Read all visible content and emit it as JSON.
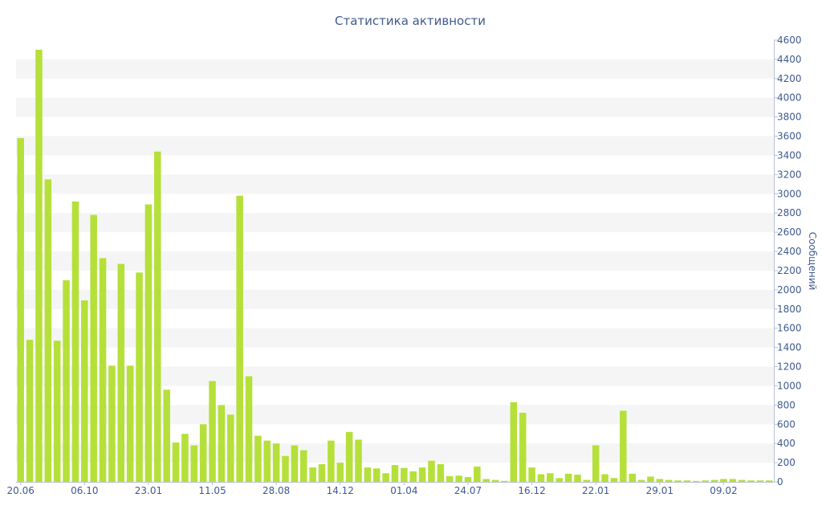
{
  "chart_data": {
    "type": "bar",
    "title": "Статистика активности",
    "ylabel": "Сообщений",
    "xlabel": "",
    "ylim": [
      0,
      4600
    ],
    "y_ticks": [
      0,
      200,
      400,
      600,
      800,
      1000,
      1200,
      1400,
      1600,
      1800,
      2000,
      2200,
      2400,
      2600,
      2800,
      3000,
      3200,
      3400,
      3600,
      3800,
      4000,
      4200,
      4400,
      4600
    ],
    "y_axis_position": "right",
    "grid": "alternating horizontal bands",
    "x_tick_labels": [
      "20.06",
      "06.10",
      "23.01",
      "11.05",
      "28.08",
      "14.12",
      "01.04",
      "24.07",
      "16.12",
      "22.01",
      "29.01",
      "09.02"
    ],
    "values": [
      3580,
      1480,
      4500,
      3150,
      1470,
      2100,
      2920,
      1890,
      2780,
      2330,
      1210,
      2270,
      1210,
      2180,
      2890,
      3440,
      960,
      410,
      500,
      380,
      600,
      1050,
      800,
      700,
      2980,
      1100,
      480,
      430,
      400,
      270,
      380,
      330,
      150,
      185,
      430,
      200,
      520,
      440,
      150,
      140,
      90,
      175,
      145,
      110,
      150,
      220,
      185,
      60,
      65,
      50,
      160,
      30,
      20,
      10,
      830,
      720,
      150,
      80,
      90,
      40,
      85,
      75,
      20,
      380,
      80,
      40,
      740,
      85,
      20,
      55,
      30,
      20,
      15,
      15,
      10,
      15,
      20,
      30,
      30,
      20,
      15,
      15,
      15
    ],
    "bar_color": "#b5e03a",
    "band_color": "#f5f5f5",
    "text_color": "#3f5a8e"
  }
}
